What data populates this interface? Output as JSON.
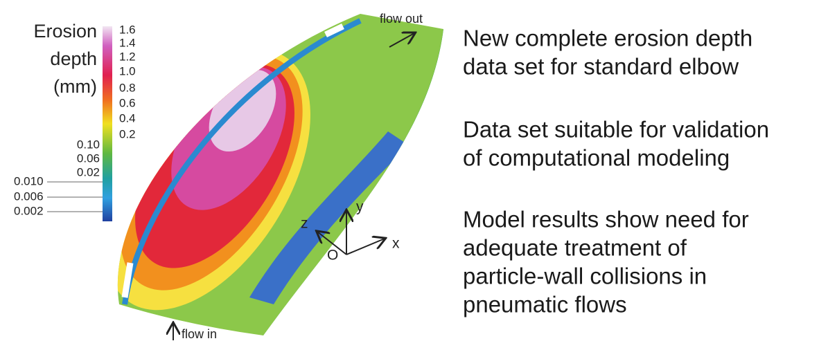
{
  "colorbar": {
    "title_lines": [
      "Erosion",
      "depth",
      "(mm)"
    ],
    "ticks": [
      "1.6",
      "1.4",
      "1.2",
      "1.0",
      "0.8",
      "0.6",
      "0.4",
      "0.2",
      "0.10",
      "0.06",
      "0.02",
      "0.010",
      "0.006",
      "0.002"
    ]
  },
  "annotations": {
    "flow_out": "flow out",
    "flow_in": "flow in"
  },
  "axes": {
    "x": "x",
    "y": "y",
    "z": "z",
    "origin": "O"
  },
  "bullets": [
    {
      "lines": [
        "New complete erosion depth",
        "data set for standard elbow"
      ]
    },
    {
      "lines": [
        "Data set suitable for validation",
        "of computational modeling"
      ]
    },
    {
      "lines": [
        "Model results show need for",
        "adequate treatment of",
        "particle-wall collisions in",
        "pneumatic flows"
      ]
    }
  ]
}
